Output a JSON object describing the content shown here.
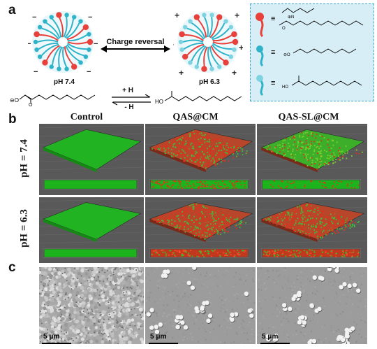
{
  "panels": {
    "a": "a",
    "b": "b",
    "c": "c"
  },
  "panel_a": {
    "charge_reversal": "Charge reversal",
    "left_ph": "pH 7.4",
    "right_ph": "pH 6.3",
    "plus_h": "+ H",
    "minus_h": "- H",
    "ho_label": "HO",
    "equiv": "≡"
  },
  "panel_b": {
    "columns": [
      "Control",
      "QAS@CM",
      "QAS-SL@CM"
    ],
    "rows": [
      "pH = 7.4",
      "pH = 6.3"
    ]
  },
  "panel_c": {
    "scale_labels": [
      "5 μm",
      "5 μm",
      "5 μm"
    ]
  },
  "colors": {
    "micelle_blue": "#2fb3c9",
    "head_red": "#e8413c",
    "biofilm_green": "#1db31d",
    "dead_red": "#e0301e",
    "legend_bg": "#d8eef6",
    "legend_border": "#3aa7c9"
  }
}
